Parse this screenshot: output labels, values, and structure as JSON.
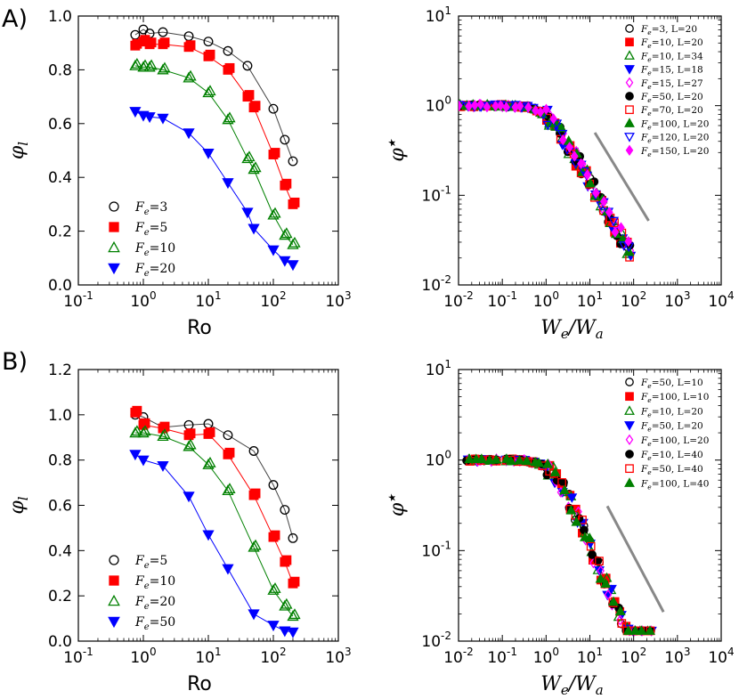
{
  "panel_labels": [
    "A)",
    "B)"
  ],
  "chart_data": [
    {
      "id": "A-left",
      "type": "line",
      "xscale": "log",
      "yscale": "linear",
      "xlim": [
        0.1,
        1000
      ],
      "ylim": [
        0.0,
        1.0
      ],
      "xticks": [
        0.1,
        1,
        10,
        100,
        1000
      ],
      "xtick_labels": [
        [
          "10",
          "-1"
        ],
        [
          "10",
          "0"
        ],
        [
          "10",
          "1"
        ],
        [
          "10",
          "2"
        ],
        [
          "10",
          "3"
        ]
      ],
      "yticks": [
        0.0,
        0.2,
        0.4,
        0.6,
        0.8,
        1.0
      ],
      "ytick_labels": [
        "0.0",
        "0.2",
        "0.4",
        "0.6",
        "0.8",
        "1.0"
      ],
      "xlabel": "Ro",
      "ylabel": "φ_l",
      "legend_position": "lower-left",
      "series": [
        {
          "name": "Fe=3",
          "label_main": "F",
          "label_sub": "e",
          "label_rest": "=3",
          "marker": "circle-open",
          "color": "#000000",
          "line_color": "#444444",
          "x": [
            0.75,
            1.0,
            1.25,
            2.0,
            5.0,
            10,
            20,
            40,
            100,
            150,
            200
          ],
          "y": [
            0.93,
            0.95,
            0.935,
            0.94,
            0.925,
            0.905,
            0.87,
            0.815,
            0.655,
            0.54,
            0.46
          ]
        },
        {
          "name": "Fe=5",
          "label_main": "F",
          "label_sub": "e",
          "label_rest": "=5",
          "marker": "square-filled",
          "color": "#ff0000",
          "line_color": "#ff0000",
          "x": [
            0.75,
            1.0,
            1.25,
            2.0,
            5.0,
            10,
            20,
            40,
            50,
            100,
            150,
            200
          ],
          "y": [
            0.89,
            0.905,
            0.895,
            0.895,
            0.885,
            0.85,
            0.8,
            0.7,
            0.66,
            0.485,
            0.37,
            0.3
          ]
        },
        {
          "name": "Fe=10",
          "label_main": "F",
          "label_sub": "e",
          "label_rest": "=10",
          "marker": "triangle-up-open",
          "color": "#008000",
          "line_color": "#008000",
          "x": [
            0.75,
            1.0,
            1.25,
            2.0,
            5.0,
            10,
            20,
            40,
            50,
            100,
            150,
            200
          ],
          "y": [
            0.815,
            0.81,
            0.81,
            0.8,
            0.77,
            0.715,
            0.615,
            0.47,
            0.43,
            0.26,
            0.185,
            0.15
          ]
        },
        {
          "name": "Fe=20",
          "label_main": "F",
          "label_sub": "e",
          "label_rest": "=20",
          "marker": "triangle-down-filled",
          "color": "#0000ff",
          "line_color": "#0000ff",
          "x": [
            0.75,
            1.0,
            1.25,
            2.0,
            5.0,
            10,
            20,
            40,
            50,
            100,
            150,
            200
          ],
          "y": [
            0.645,
            0.63,
            0.625,
            0.62,
            0.565,
            0.49,
            0.38,
            0.27,
            0.21,
            0.13,
            0.09,
            0.075
          ]
        }
      ]
    },
    {
      "id": "A-right",
      "type": "scatter",
      "xscale": "log",
      "yscale": "log",
      "xlim": [
        0.01,
        10000
      ],
      "ylim": [
        0.01,
        10
      ],
      "xticks": [
        0.01,
        0.1,
        1,
        10,
        100,
        1000,
        10000
      ],
      "xtick_labels": [
        [
          "10",
          "-2"
        ],
        [
          "10",
          "-1"
        ],
        [
          "10",
          "0"
        ],
        [
          "10",
          "1"
        ],
        [
          "10",
          "2"
        ],
        [
          "10",
          "3"
        ],
        [
          "10",
          "4"
        ]
      ],
      "yticks": [
        0.01,
        0.1,
        1,
        10
      ],
      "ytick_labels": [
        [
          "10",
          "-2"
        ],
        [
          "10",
          "-1"
        ],
        [
          "10",
          "0"
        ],
        [
          "10",
          "1"
        ]
      ],
      "xlabel": "W_e/W_a",
      "ylabel": "φ*",
      "legend_position": "top-right",
      "reference_line": {
        "x": [
          13,
          220
        ],
        "y": [
          0.5,
          0.052
        ],
        "color": "#888888"
      },
      "series": [
        {
          "name": "Fe=3, L=20",
          "marker": "circle-open",
          "color": "#000000",
          "label": "=3, L=20",
          "seed": 1
        },
        {
          "name": "Fe=10, L=20",
          "marker": "square-filled",
          "color": "#ff0000",
          "label": "=10, L=20",
          "seed": 2
        },
        {
          "name": "Fe=10, L=34",
          "marker": "triangle-up-open",
          "color": "#008000",
          "label": "=10, L=34",
          "seed": 3
        },
        {
          "name": "Fe=15, L=18",
          "marker": "triangle-down-filled",
          "color": "#0000ff",
          "label": "=15, L=18",
          "seed": 4
        },
        {
          "name": "Fe=15, L=27",
          "marker": "diamond-open",
          "color": "#ff00ff",
          "label": "=15, L=27",
          "seed": 5
        },
        {
          "name": "Fe=50, L=20",
          "marker": "circle-filled",
          "color": "#000000",
          "label": "=50, L=20",
          "seed": 6
        },
        {
          "name": "Fe=70, L=20",
          "marker": "square-open",
          "color": "#ff0000",
          "label": "=70, L=20",
          "seed": 7
        },
        {
          "name": "Fe=100, L=20",
          "marker": "triangle-up-filled",
          "color": "#008000",
          "label": "=100, L=20",
          "seed": 8
        },
        {
          "name": "Fe=120, L=20",
          "marker": "triangle-down-open",
          "color": "#0000ff",
          "label": "=120, L=20",
          "seed": 9
        },
        {
          "name": "Fe=150, L=20",
          "marker": "diamond-filled",
          "color": "#ff00ff",
          "label": "=150, L=20",
          "seed": 10
        }
      ],
      "collapse_curve": {
        "plateau": 1.0,
        "knee": 1.0,
        "slope": -0.85,
        "x_min": 0.01,
        "x_max": 100,
        "spread": 0.12
      }
    },
    {
      "id": "B-left",
      "type": "line",
      "xscale": "log",
      "yscale": "linear",
      "xlim": [
        0.1,
        1000
      ],
      "ylim": [
        0.0,
        1.2
      ],
      "xticks": [
        0.1,
        1,
        10,
        100,
        1000
      ],
      "xtick_labels": [
        [
          "10",
          "-1"
        ],
        [
          "10",
          "0"
        ],
        [
          "10",
          "1"
        ],
        [
          "10",
          "2"
        ],
        [
          "10",
          "3"
        ]
      ],
      "yticks": [
        0.0,
        0.2,
        0.4,
        0.6,
        0.8,
        1.0,
        1.2
      ],
      "ytick_labels": [
        "0.0",
        "0.2",
        "0.4",
        "0.6",
        "0.8",
        "1.0",
        "1.2"
      ],
      "xlabel": "Ro",
      "ylabel": "φ_l",
      "legend_position": "lower-left",
      "series": [
        {
          "name": "Fe=5",
          "label_main": "F",
          "label_sub": "e",
          "label_rest": "=5",
          "marker": "circle-open",
          "color": "#000000",
          "line_color": "#444444",
          "x": [
            0.75,
            1.0,
            2.0,
            5.0,
            10,
            20,
            50,
            100,
            150,
            200
          ],
          "y": [
            1.0,
            0.99,
            0.945,
            0.955,
            0.96,
            0.91,
            0.84,
            0.69,
            0.58,
            0.455
          ]
        },
        {
          "name": "Fe=10",
          "label_main": "F",
          "label_sub": "e",
          "label_rest": "=10",
          "marker": "square-filled",
          "color": "#ff0000",
          "line_color": "#ff0000",
          "x": [
            0.75,
            1.0,
            2.0,
            5.0,
            10,
            20,
            50,
            100,
            150,
            200
          ],
          "y": [
            1.01,
            0.955,
            0.94,
            0.91,
            0.915,
            0.825,
            0.645,
            0.46,
            0.35,
            0.255
          ]
        },
        {
          "name": "Fe=20",
          "label_main": "F",
          "label_sub": "e",
          "label_rest": "=20",
          "marker": "triangle-up-open",
          "color": "#008000",
          "line_color": "#008000",
          "x": [
            0.75,
            1.0,
            2.0,
            5.0,
            10,
            20,
            50,
            100,
            150,
            200
          ],
          "y": [
            0.92,
            0.92,
            0.905,
            0.86,
            0.78,
            0.665,
            0.415,
            0.225,
            0.155,
            0.11
          ]
        },
        {
          "name": "Fe=50",
          "label_main": "F",
          "label_sub": "e",
          "label_rest": "=50",
          "marker": "triangle-down-filled",
          "color": "#0000ff",
          "line_color": "#0000ff",
          "x": [
            0.75,
            1.0,
            2.0,
            5.0,
            10,
            20,
            50,
            100,
            150,
            200
          ],
          "y": [
            0.825,
            0.8,
            0.775,
            0.64,
            0.47,
            0.32,
            0.12,
            0.07,
            0.045,
            0.04
          ]
        }
      ]
    },
    {
      "id": "B-right",
      "type": "scatter",
      "xscale": "log",
      "yscale": "log",
      "xlim": [
        0.01,
        10000
      ],
      "ylim": [
        0.01,
        10
      ],
      "xticks": [
        0.01,
        0.1,
        1,
        10,
        100,
        1000,
        10000
      ],
      "xtick_labels": [
        [
          "10",
          "-2"
        ],
        [
          "10",
          "-1"
        ],
        [
          "10",
          "0"
        ],
        [
          "10",
          "1"
        ],
        [
          "10",
          "2"
        ],
        [
          "10",
          "3"
        ],
        [
          "10",
          "4"
        ]
      ],
      "yticks": [
        0.01,
        0.1,
        1,
        10
      ],
      "ytick_labels": [
        [
          "10",
          "-2"
        ],
        [
          "10",
          "-1"
        ],
        [
          "10",
          "0"
        ],
        [
          "10",
          "1"
        ]
      ],
      "xlabel": "W_e/W_a",
      "ylabel": "φ*",
      "legend_position": "top-right",
      "reference_line": {
        "x": [
          25,
          480
        ],
        "y": [
          0.31,
          0.021
        ],
        "color": "#888888"
      },
      "series": [
        {
          "name": "Fe=50, L=10",
          "marker": "circle-open",
          "color": "#000000",
          "label": "=50, L=10",
          "seed": 11
        },
        {
          "name": "Fe=100, L=10",
          "marker": "square-filled",
          "color": "#ff0000",
          "label": "=100, L=10",
          "seed": 12
        },
        {
          "name": "Fe=10, L=20",
          "marker": "triangle-up-open",
          "color": "#008000",
          "label": "=10, L=20",
          "seed": 13
        },
        {
          "name": "Fe=50, L=20",
          "marker": "triangle-down-filled",
          "color": "#0000ff",
          "label": "=50, L=20",
          "seed": 14
        },
        {
          "name": "Fe=100, L=20",
          "marker": "diamond-open",
          "color": "#ff00ff",
          "label": "=100, L=20",
          "seed": 15
        },
        {
          "name": "Fe=10, L=40",
          "marker": "circle-filled",
          "color": "#000000",
          "label": "=10, L=40",
          "seed": 16
        },
        {
          "name": "Fe=50, L=40",
          "marker": "square-open",
          "color": "#ff0000",
          "label": "=50, L=40",
          "seed": 17
        },
        {
          "name": "Fe=100, L=40",
          "marker": "triangle-up-filled",
          "color": "#008000",
          "label": "=100, L=40",
          "seed": 18
        }
      ],
      "collapse_curve": {
        "plateau": 1.0,
        "knee": 1.5,
        "slope": -1.15,
        "x_min": 0.015,
        "x_max": 300,
        "spread": 0.12
      }
    }
  ]
}
